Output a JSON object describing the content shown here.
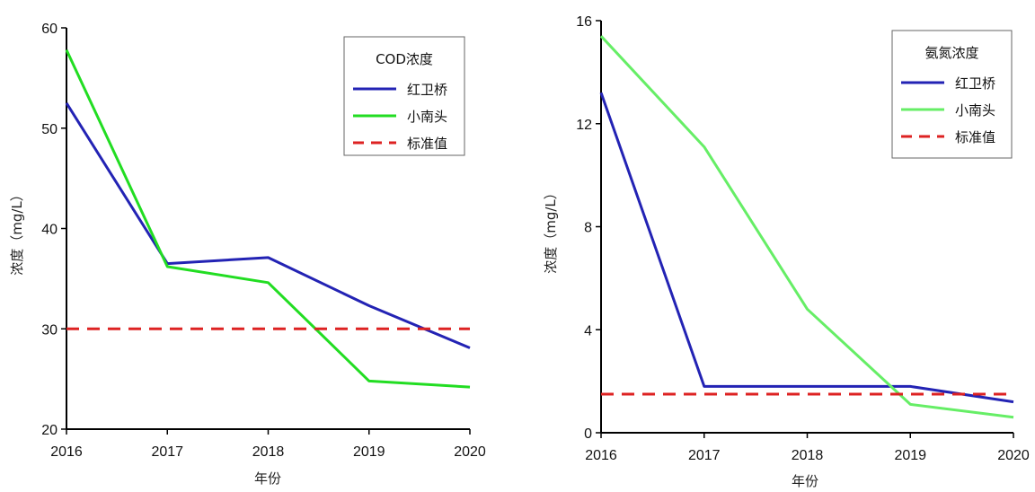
{
  "chart_data": [
    {
      "type": "line",
      "title": "",
      "xlabel": "年份",
      "ylabel": "浓度（mg/L）",
      "x": [
        2016,
        2017,
        2018,
        2019,
        2020
      ],
      "xticks": [
        "2016",
        "2017",
        "2018",
        "2019",
        "2020"
      ],
      "yticks": [
        "20",
        "30",
        "40",
        "50",
        "60"
      ],
      "ylim": [
        20,
        60
      ],
      "grid": false,
      "legend_position": "top-right",
      "legend_title": "COD浓度",
      "series": [
        {
          "name": "红卫桥",
          "values": [
            52.5,
            36.5,
            37.1,
            32.3,
            28.1
          ],
          "color": "#2323b4",
          "style": "solid"
        },
        {
          "name": "小南头",
          "values": [
            57.8,
            36.2,
            34.6,
            24.8,
            24.2
          ],
          "color": "#22dd22",
          "style": "solid"
        },
        {
          "name": "标准值",
          "values": [
            30,
            30,
            30,
            30,
            30
          ],
          "color": "#dd2222",
          "style": "dashed"
        }
      ]
    },
    {
      "type": "line",
      "title": "",
      "xlabel": "年份",
      "ylabel": "浓度（mg/L）",
      "x": [
        2016,
        2017,
        2018,
        2019,
        2020
      ],
      "xticks": [
        "2016",
        "2017",
        "2018",
        "2019",
        "2020"
      ],
      "yticks": [
        "0",
        "4",
        "8",
        "12",
        "16"
      ],
      "ylim": [
        0,
        16
      ],
      "grid": false,
      "legend_position": "top-right",
      "legend_title": "氨氮浓度",
      "series": [
        {
          "name": "红卫桥",
          "values": [
            13.2,
            1.8,
            1.8,
            1.8,
            1.2
          ],
          "color": "#2323b4",
          "style": "solid"
        },
        {
          "name": "小南头",
          "values": [
            15.4,
            11.1,
            4.8,
            1.1,
            0.6
          ],
          "color": "#66ee66",
          "style": "solid"
        },
        {
          "name": "标准值",
          "values": [
            1.5,
            1.5,
            1.5,
            1.5,
            1.5
          ],
          "color": "#dd2222",
          "style": "dashed"
        }
      ]
    }
  ]
}
